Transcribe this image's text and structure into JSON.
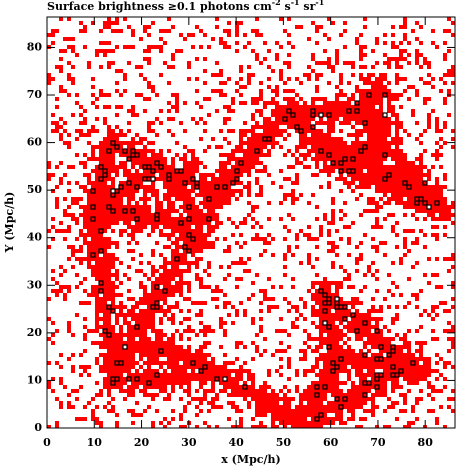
{
  "chart_data": {
    "type": "map",
    "title_parts": [
      "Surface brightness ≥0.1 photons cm",
      "-2",
      " s",
      "-1",
      " sr",
      "-1"
    ],
    "xlabel": "x (Mpc/h)",
    "ylabel": "Y (Mpc/h)",
    "xlim": [
      0,
      86.3
    ],
    "ylim": [
      0,
      86.4
    ],
    "xticks": [
      0,
      10,
      20,
      30,
      40,
      50,
      60,
      70,
      80
    ],
    "yticks": [
      0,
      10,
      20,
      30,
      40,
      50,
      60,
      70,
      80
    ],
    "color": "#ff0000"
  }
}
